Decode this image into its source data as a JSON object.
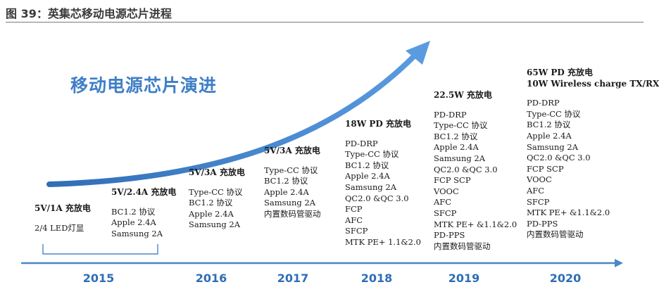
{
  "figure_title": "图 39：英集芯移动电源芯片进程",
  "banner": "移动电源芯片演进",
  "columns": [
    {
      "head": [
        "5V/1A 充放电"
      ],
      "items": [
        "2/4 LED灯显"
      ]
    },
    {
      "head": [
        "5V/2.4A 充放电"
      ],
      "items": [
        "BC1.2  协议",
        "Apple  2.4A",
        "Samsung 2A"
      ]
    },
    {
      "head": [
        "5V/3A 充放电"
      ],
      "items": [
        "Type-CC 协议",
        "BC1.2  协议",
        "Apple  2.4A",
        "Samsung 2A"
      ]
    },
    {
      "head": [
        "5V/3A 充放电"
      ],
      "items": [
        "Type-CC 协议",
        "BC1.2  协议",
        "Apple  2.4A",
        "Samsung 2A",
        "内置数码管驱动"
      ]
    },
    {
      "head": [
        "18W PD 充放电"
      ],
      "items": [
        "PD-DRP",
        "Type-CC 协议",
        "BC1.2  协议",
        "Apple  2.4A",
        "Samsung 2A",
        "QC2.0 &QC 3.0",
        "FCP",
        "AFC",
        "SFCP",
        "MTK PE+ 1.1&2.0"
      ]
    },
    {
      "head": [
        "22.5W 充放电"
      ],
      "items": [
        "PD-DRP",
        "Type-CC 协议",
        "BC1.2  协议",
        "Apple  2.4A",
        "Samsung 2A",
        "QC2.0 &QC 3.0",
        "FCP SCP",
        "VOOC",
        "AFC",
        "SFCP",
        "MTK PE+ &1.1&2.0",
        "PD-PPS",
        "内置数码管驱动"
      ]
    },
    {
      "head": [
        "65W PD 充放电",
        "10W Wireless charge TX/RX"
      ],
      "items": [
        "PD-DRP",
        "Type-CC 协议",
        "BC1.2  协议",
        "Apple  2.4A",
        "Samsung 2A",
        "QC2.0 &QC 3.0",
        "FCP SCP",
        "VOOC",
        "AFC",
        "SFCP",
        "MTK PE+ &1.1&2.0",
        "PD-PPS",
        "内置数码管驱动"
      ]
    }
  ],
  "years": [
    "2015",
    "2016",
    "2017",
    "2018",
    "2019",
    "2020"
  ],
  "colors": {
    "accent": "#3f7fc6",
    "axis": "#4a86c8"
  }
}
